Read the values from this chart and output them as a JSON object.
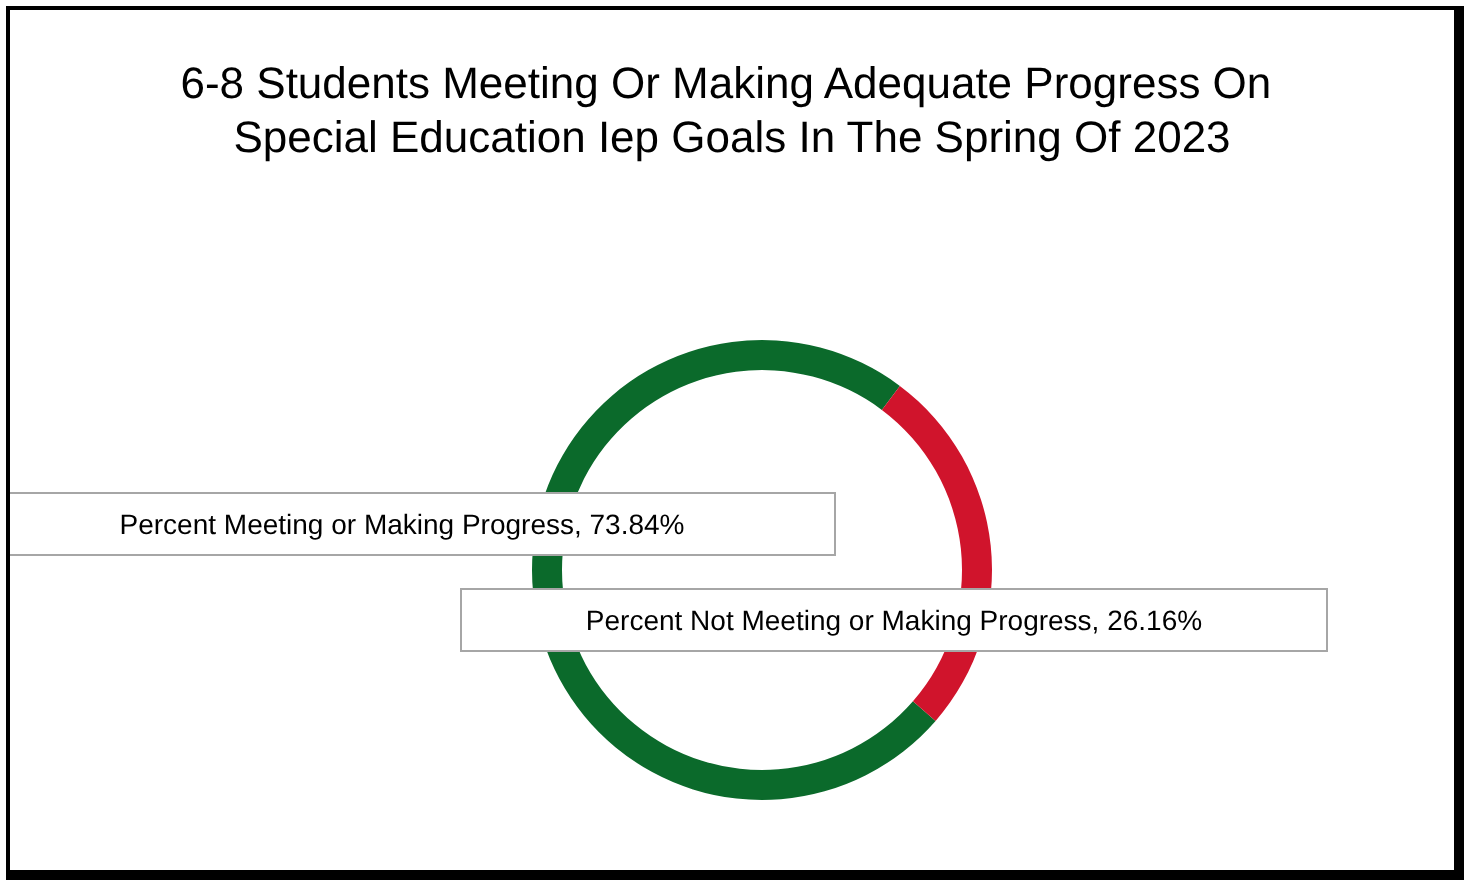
{
  "chart_data": {
    "type": "donut",
    "title": "6-8 Students Meeting Or Making Adequate Progress On Special Education Iep Goals In The Spring Of 2023",
    "categories": [
      "Percent Meeting or Making Progress",
      "Percent Not Meeting or Making Progress"
    ],
    "values": [
      73.84,
      26.16
    ],
    "colors": [
      "#0b6a2b",
      "#d0142c"
    ],
    "value_labels": [
      "73.84%",
      "26.16%"
    ],
    "legend": false
  }
}
